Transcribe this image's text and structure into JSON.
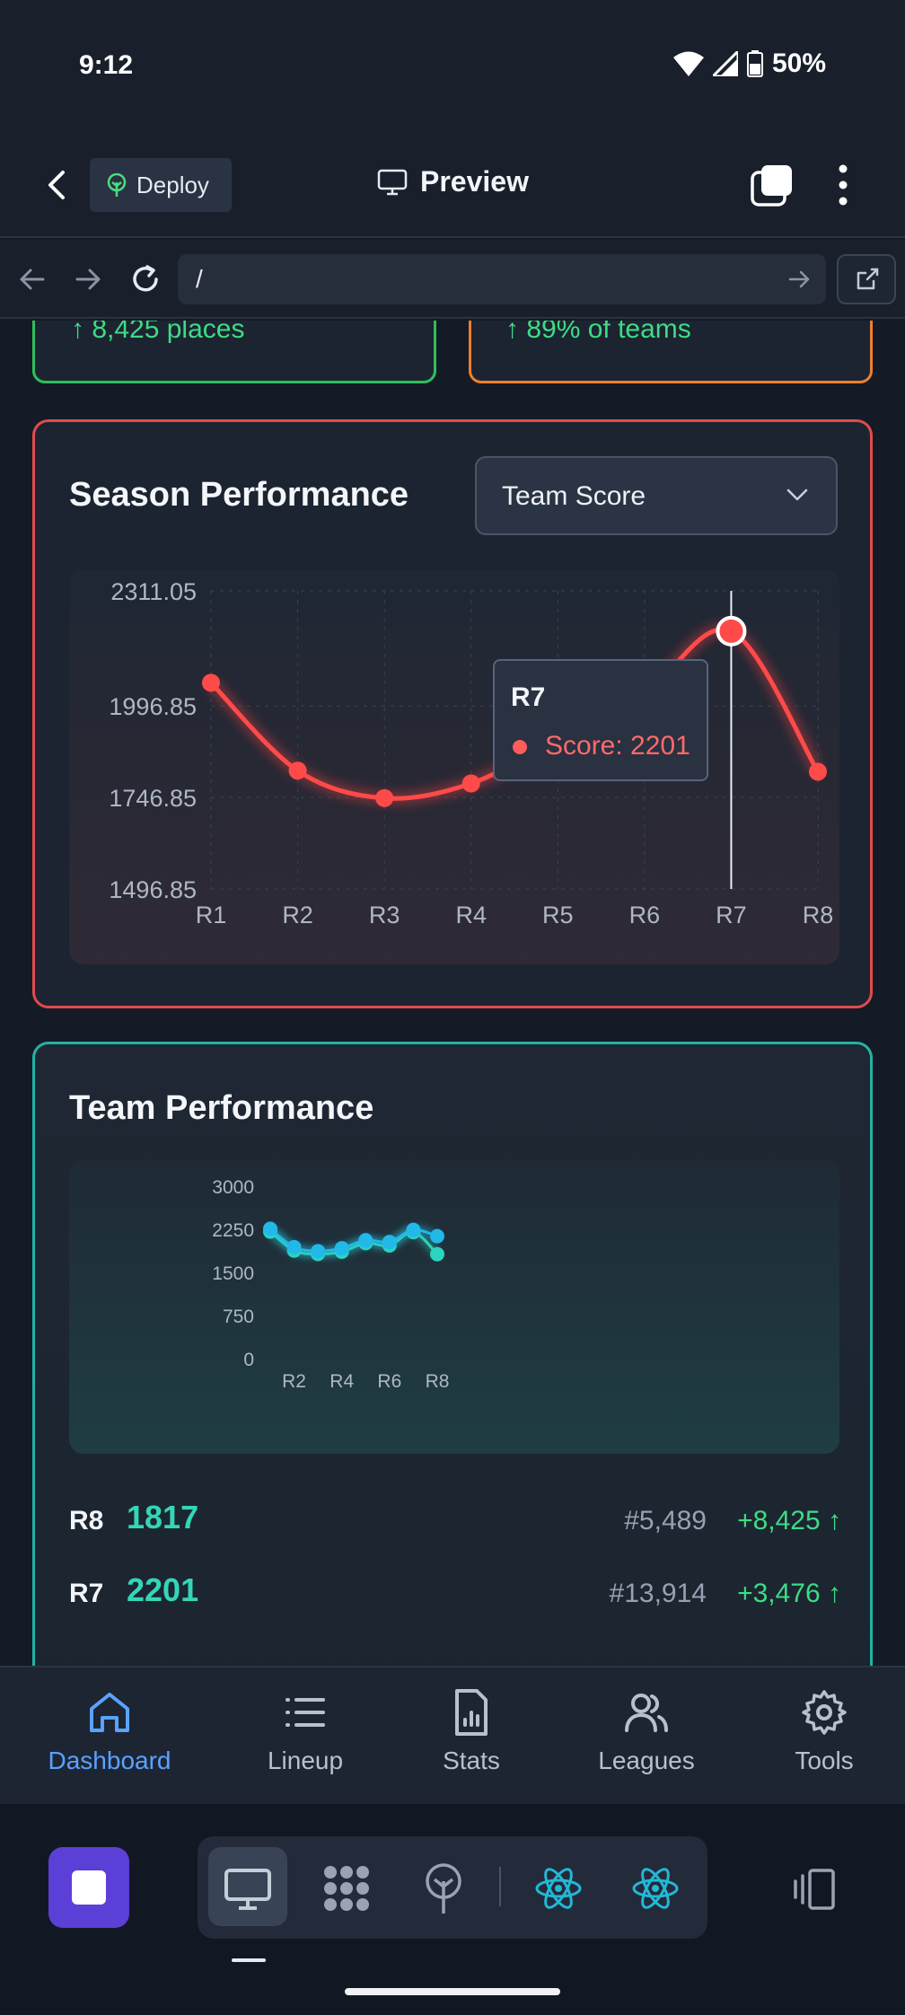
{
  "status_bar": {
    "time": "9:12",
    "battery": "50%"
  },
  "header": {
    "deploy_label": "Deploy",
    "preview_label": "Preview"
  },
  "browser": {
    "url": "/"
  },
  "top_cards": {
    "left_text": "↑ 8,425 places",
    "right_text": "↑ 89% of teams"
  },
  "season": {
    "title": "Season Performance",
    "metric_selected": "Team Score",
    "tooltip": {
      "label": "R7",
      "text": "Score: 2201"
    }
  },
  "team": {
    "title": "Team Performance",
    "rows": [
      {
        "round": "R8",
        "score": "1817",
        "rank": "#5,489",
        "change": "+8,425 ↑"
      },
      {
        "round": "R7",
        "score": "2201",
        "rank": "#13,914",
        "change": "+3,476 ↑"
      }
    ]
  },
  "bottom_nav": {
    "items": [
      {
        "label": "Dashboard",
        "icon": "home-icon"
      },
      {
        "label": "Lineup",
        "icon": "list-icon"
      },
      {
        "label": "Stats",
        "icon": "stats-file-icon"
      },
      {
        "label": "Leagues",
        "icon": "users-icon"
      },
      {
        "label": "Tools",
        "icon": "gear-icon"
      }
    ]
  },
  "colors": {
    "accent_red": "#e24b4b",
    "accent_teal": "#22b3a3",
    "nav_active": "#5aa2ff",
    "stop_button": "#5b3fd6"
  },
  "chart_data": [
    {
      "type": "line",
      "title": "Season Performance",
      "x": [
        "R1",
        "R2",
        "R3",
        "R4",
        "R5",
        "R6",
        "R7",
        "R8"
      ],
      "ytick_labels": [
        "2311.05",
        "1996.85",
        "1746.85",
        "1496.85"
      ],
      "ylim": [
        1496.85,
        2311.05
      ],
      "series": [
        {
          "values": [
            2060,
            1820,
            1745,
            1785,
            1905,
            2030,
            2201,
            1817
          ]
        }
      ],
      "grid": true,
      "highlight": "R7"
    },
    {
      "type": "line",
      "title": "Team Performance",
      "x": [
        "R1",
        "R2",
        "R3",
        "R4",
        "R5",
        "R6",
        "R7",
        "R8"
      ],
      "xtick_labels": [
        "R2",
        "R4",
        "R6",
        "R8"
      ],
      "ytick_labels": [
        "3000",
        "2250",
        "1500",
        "750",
        "0"
      ],
      "ylim": [
        0,
        3000
      ],
      "series": [
        {
          "values": [
            2210,
            1880,
            1820,
            1860,
            2010,
            1970,
            2201,
            1817
          ]
        },
        {
          "values": [
            2260,
            1940,
            1870,
            1920,
            2060,
            2030,
            2240,
            2130
          ]
        }
      ],
      "grid": false
    }
  ]
}
